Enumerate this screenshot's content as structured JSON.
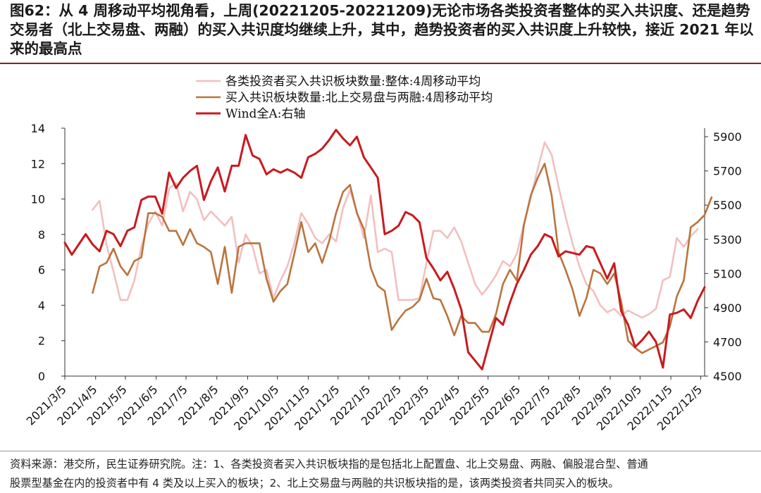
{
  "title": "图62：从 4 周移动平均视角看，上周(20221205-20221209)无论市场各类投资者整体的买入共识度、还是趋势交易者（北上交易盘、两融）的买入共识度均继续上升，其中，趋势投资者的买入共识度上升较快，接近 2021 年以来的最高点",
  "source_lines": [
    "资料来源：港交所，民生证券研究院。注：1、各类投资者买入共识板块指的是包括北上配置盘、北上交易盘、两融、偏股混合型、普通",
    "股票型基金在内的投资者中有 4 类及以上买入的板块；2、北上交易盘与两融的共识板块指的是，该两类投资者共同买入的板块。"
  ],
  "colors": {
    "series1": "#f2bfc0",
    "series2": "#b9743e",
    "series3": "#c81a1e"
  },
  "chart_data": {
    "type": "line",
    "x_start": "2021/3/5",
    "x_end": "2022/12/9",
    "x_tick_labels": [
      "2021/3/5",
      "2021/4/5",
      "2021/5/5",
      "2021/6/5",
      "2021/7/5",
      "2021/8/5",
      "2021/9/5",
      "2021/10/5",
      "2021/11/5",
      "2021/12/5",
      "2022/1/5",
      "2022/2/5",
      "2022/3/5",
      "2022/4/5",
      "2022/5/5",
      "2022/6/5",
      "2022/7/5",
      "2022/8/5",
      "2022/9/5",
      "2022/10/5",
      "2022/11/5",
      "2022/12/5"
    ],
    "y_left": {
      "min": 0,
      "max": 14,
      "ticks": [
        0,
        2,
        4,
        6,
        8,
        10,
        12,
        14
      ]
    },
    "y_right": {
      "min": 4500,
      "max": 5950,
      "ticks": [
        4500,
        4700,
        4900,
        5100,
        5300,
        5500,
        5700,
        5900
      ]
    },
    "legend_position": "top-left",
    "grid": false,
    "series": [
      {
        "name": "各类投资者买入共识板块数量:整体:4周移动平均",
        "axis": "left",
        "x_start": "2021/4/2",
        "values": [
          9.4,
          9.9,
          7.4,
          5.9,
          4.3,
          4.3,
          5.4,
          7.3,
          8.6,
          9.3,
          8.5,
          10.6,
          10.9,
          9.3,
          10.4,
          10.0,
          8.8,
          9.3,
          8.9,
          8.5,
          9.0,
          6.4,
          8.0,
          7.3,
          5.8,
          6.0,
          4.4,
          5.4,
          6.2,
          7.5,
          9.2,
          8.6,
          7.8,
          7.5,
          8.0,
          7.6,
          9.5,
          10.5,
          9.3,
          7.8,
          10.2,
          7.0,
          7.2,
          7.0,
          4.3,
          4.3,
          4.3,
          4.4,
          6.4,
          8.2,
          8.2,
          7.8,
          8.4,
          7.6,
          6.4,
          5.2,
          4.6,
          5.1,
          5.7,
          6.5,
          6.2,
          6.9,
          8.6,
          10.1,
          11.7,
          13.2,
          12.5,
          10.7,
          9.0,
          7.5,
          6.2,
          5.2,
          4.8,
          4.0,
          3.6,
          3.8,
          3.4,
          3.7,
          3.5,
          3.3,
          3.5,
          3.8,
          5.4,
          5.6,
          7.8,
          7.3,
          7.9,
          8.3
        ]
      },
      {
        "name": "买入共识板块数量:北上交易盘与两融:4周移动平均",
        "axis": "left",
        "x_start": "2021/4/2",
        "values": [
          4.7,
          6.2,
          6.4,
          7.2,
          6.2,
          5.7,
          6.5,
          6.7,
          9.2,
          9.2,
          9.0,
          8.2,
          8.2,
          7.4,
          8.3,
          7.5,
          7.3,
          7.0,
          5.2,
          7.3,
          4.7,
          7.3,
          7.5,
          7.5,
          7.5,
          5.5,
          4.2,
          4.8,
          5.2,
          6.9,
          8.7,
          7.0,
          7.5,
          6.4,
          7.6,
          9.2,
          10.4,
          10.8,
          9.2,
          8.3,
          6.1,
          5.1,
          4.8,
          2.6,
          3.2,
          3.7,
          3.9,
          4.3,
          5.5,
          4.4,
          4.3,
          3.4,
          2.3,
          3.4,
          3.0,
          3.0,
          2.5,
          2.5,
          3.5,
          5.2,
          6.0,
          5.4,
          8.5,
          10.2,
          11.2,
          12.0,
          10.2,
          7.0,
          6.0,
          4.9,
          3.4,
          4.4,
          6.0,
          5.8,
          5.2,
          5.8,
          4.2,
          2.0,
          1.6,
          1.3,
          1.5,
          1.7,
          1.9,
          2.8,
          4.5,
          5.4,
          8.4,
          8.7,
          9.1,
          10.1
        ]
      },
      {
        "name": "Wind全A:右轴",
        "axis": "right",
        "values": [
          5280,
          5210,
          5270,
          5330,
          5270,
          5230,
          5350,
          5330,
          5260,
          5350,
          5370,
          5530,
          5550,
          5550,
          5450,
          5690,
          5600,
          5660,
          5700,
          5730,
          5530,
          5640,
          5720,
          5580,
          5730,
          5730,
          5910,
          5790,
          5770,
          5680,
          5710,
          5690,
          5710,
          5690,
          5660,
          5780,
          5800,
          5830,
          5880,
          5940,
          5890,
          5850,
          5900,
          5780,
          5720,
          5660,
          5330,
          5350,
          5380,
          5460,
          5440,
          5400,
          5190,
          5130,
          5060,
          5110,
          5010,
          4890,
          4640,
          4590,
          4540,
          4690,
          4840,
          4800,
          4930,
          5040,
          5120,
          5210,
          5260,
          5330,
          5310,
          5200,
          5230,
          5220,
          5210,
          5260,
          5250,
          5160,
          5070,
          5160,
          4880,
          4800,
          4670,
          4710,
          4760,
          4700,
          4550,
          4860,
          4870,
          4890,
          4840,
          4940,
          5020
        ]
      }
    ]
  }
}
